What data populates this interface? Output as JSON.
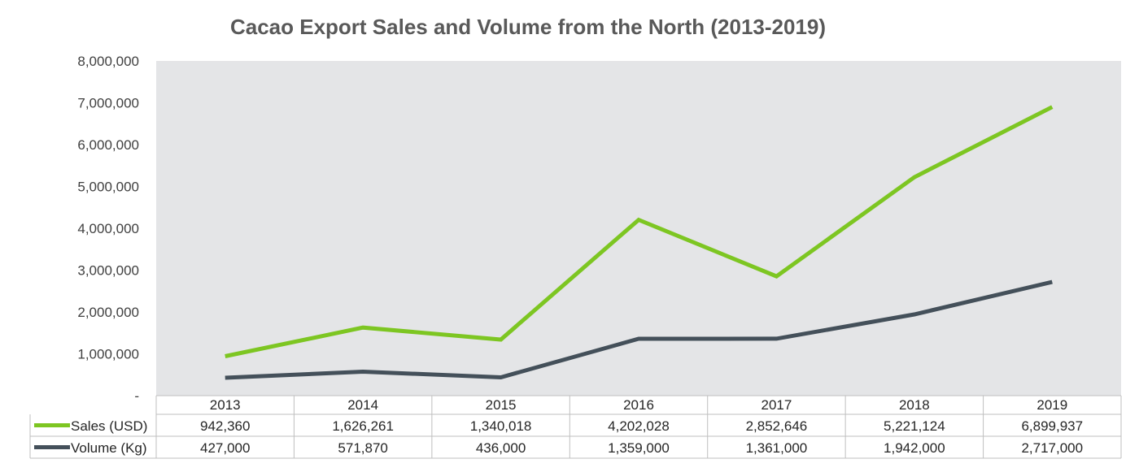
{
  "chart_data": {
    "type": "line",
    "title": "Cacao Export Sales and Volume from the North (2013-2019)",
    "categories": [
      "2013",
      "2014",
      "2015",
      "2016",
      "2017",
      "2018",
      "2019"
    ],
    "ylim": [
      0,
      8000000
    ],
    "yticks": [
      "-",
      "1,000,000",
      "2,000,000",
      "3,000,000",
      "4,000,000",
      "5,000,000",
      "6,000,000",
      "7,000,000",
      "8,000,000"
    ],
    "grid": false,
    "legend": "data-table",
    "series": [
      {
        "name": "Sales (USD)",
        "color": "#7dc622",
        "values": [
          942360,
          1626261,
          1340018,
          4202028,
          2852646,
          5221124,
          6899937
        ],
        "labels": [
          "942,360",
          "1,626,261",
          "1,340,018",
          "4,202,028",
          "2,852,646",
          "5,221,124",
          "6,899,937"
        ]
      },
      {
        "name": "Volume (Kg)",
        "color": "#44505a",
        "values": [
          427000,
          571870,
          436000,
          1359000,
          1361000,
          1942000,
          2717000
        ],
        "labels": [
          "427,000",
          "571,870",
          "436,000",
          "1,359,000",
          "1,361,000",
          "1,942,000",
          "2,717,000"
        ]
      }
    ],
    "plot_background": "#e4e5e7"
  }
}
